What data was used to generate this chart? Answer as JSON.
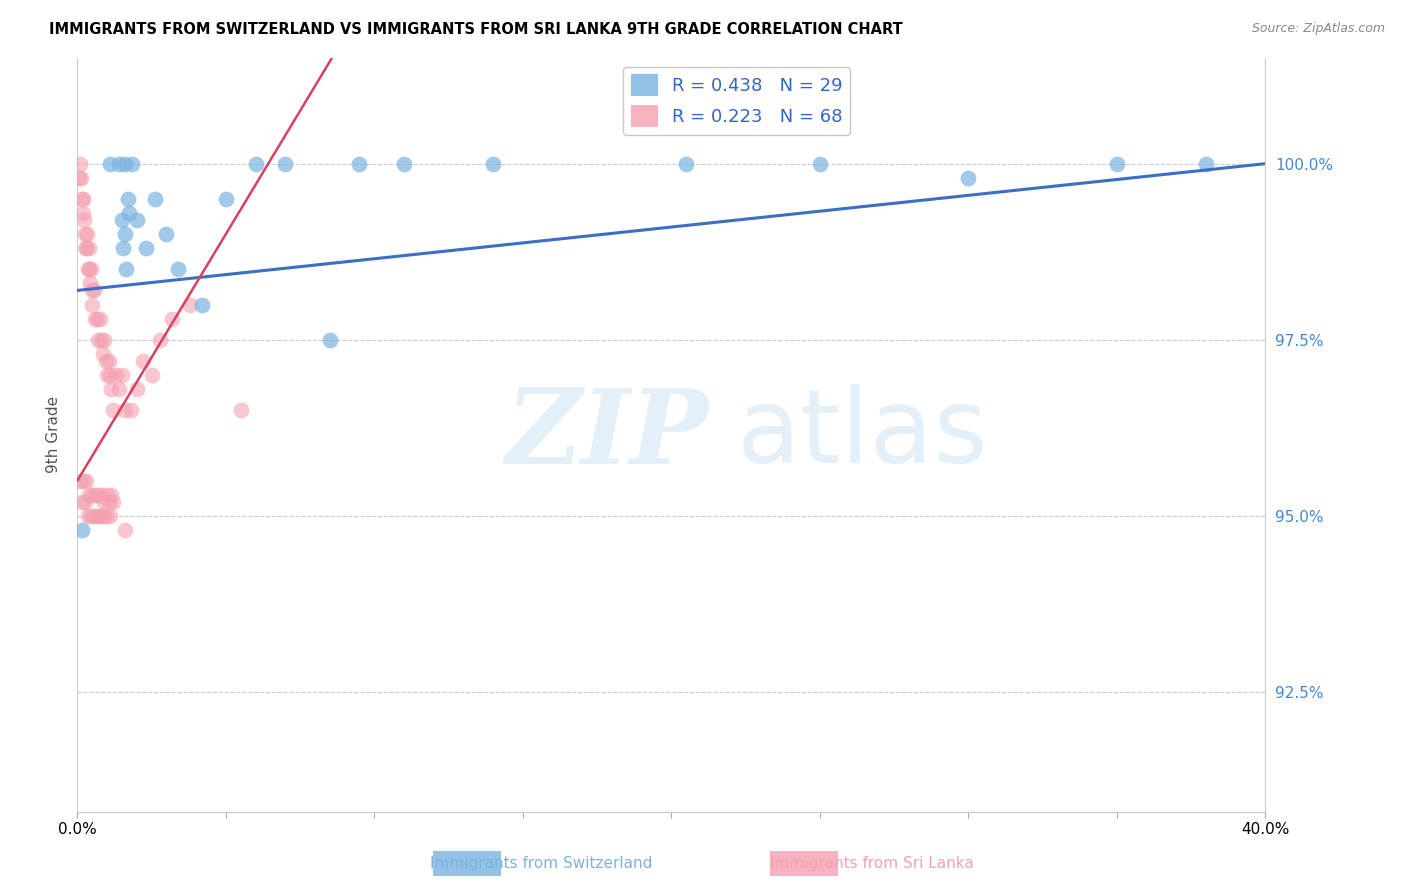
{
  "title": "IMMIGRANTS FROM SWITZERLAND VS IMMIGRANTS FROM SRI LANKA 9TH GRADE CORRELATION CHART",
  "source": "Source: ZipAtlas.com",
  "ylabel": "9th Grade",
  "y_ticks": [
    92.5,
    95.0,
    97.5,
    100.0
  ],
  "y_tick_labels": [
    "92.5%",
    "95.0%",
    "97.5%",
    "100.0%"
  ],
  "x_min": 0.0,
  "x_max": 40.0,
  "y_min": 90.8,
  "y_max": 101.5,
  "switzerland_color": "#7ab3e0",
  "srilanka_color": "#f4a0b0",
  "switzerland_R": 0.438,
  "switzerland_N": 29,
  "srilanka_R": 0.223,
  "srilanka_N": 68,
  "sw_trend_color": "#3a6fc4",
  "sl_trend_color": "#d94060",
  "sw_x": [
    0.15,
    1.1,
    1.4,
    1.6,
    1.7,
    1.85,
    2.0,
    2.3,
    2.6,
    3.0,
    3.4,
    4.2,
    5.0,
    6.0,
    7.0,
    8.5,
    9.5,
    11.0,
    14.0,
    20.5,
    25.0,
    30.0,
    35.0,
    38.0,
    1.5,
    1.55,
    1.6,
    1.65,
    1.75
  ],
  "sw_y": [
    94.8,
    100.0,
    100.0,
    100.0,
    99.5,
    100.0,
    99.2,
    98.8,
    99.5,
    99.0,
    98.5,
    98.0,
    99.5,
    100.0,
    100.0,
    97.5,
    100.0,
    100.0,
    100.0,
    100.0,
    100.0,
    99.8,
    100.0,
    100.0,
    99.2,
    98.8,
    99.0,
    98.5,
    99.3
  ],
  "sl_x": [
    0.05,
    0.1,
    0.12,
    0.15,
    0.18,
    0.2,
    0.22,
    0.25,
    0.28,
    0.3,
    0.32,
    0.35,
    0.38,
    0.4,
    0.42,
    0.45,
    0.48,
    0.5,
    0.55,
    0.6,
    0.65,
    0.7,
    0.75,
    0.8,
    0.85,
    0.9,
    0.95,
    1.0,
    1.05,
    1.1,
    1.15,
    1.2,
    1.3,
    1.4,
    1.5,
    1.6,
    1.8,
    2.0,
    2.2,
    2.5,
    2.8,
    3.2,
    3.8,
    5.5,
    0.1,
    0.15,
    0.2,
    0.25,
    0.3,
    0.35,
    0.4,
    0.45,
    0.5,
    0.55,
    0.6,
    0.65,
    0.7,
    0.75,
    0.8,
    0.85,
    0.9,
    0.95,
    1.0,
    1.05,
    1.1,
    1.15,
    1.2,
    1.6
  ],
  "sl_y": [
    99.8,
    100.0,
    99.8,
    99.5,
    99.3,
    99.5,
    99.2,
    99.0,
    98.8,
    98.8,
    99.0,
    98.5,
    98.8,
    98.5,
    98.3,
    98.5,
    98.2,
    98.0,
    98.2,
    97.8,
    97.8,
    97.5,
    97.8,
    97.5,
    97.3,
    97.5,
    97.2,
    97.0,
    97.2,
    97.0,
    96.8,
    96.5,
    97.0,
    96.8,
    97.0,
    96.5,
    96.5,
    96.8,
    97.2,
    97.0,
    97.5,
    97.8,
    98.0,
    96.5,
    95.5,
    95.2,
    95.5,
    95.2,
    95.5,
    95.0,
    95.3,
    95.0,
    95.3,
    95.0,
    95.3,
    95.0,
    95.3,
    95.0,
    95.3,
    95.0,
    95.2,
    95.0,
    95.3,
    95.2,
    95.0,
    95.3,
    95.2,
    94.8
  ]
}
